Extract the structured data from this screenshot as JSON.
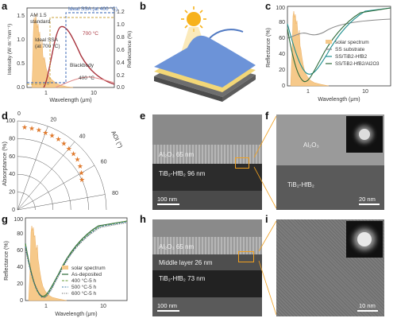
{
  "panel_labels": [
    "a",
    "b",
    "c",
    "d",
    "e",
    "f",
    "g",
    "h",
    "i"
  ],
  "panel_a": {
    "ylabel_left": "Intensity (W·m⁻²nm⁻¹)",
    "ylabel_right": "Reflectance (%)",
    "xlabel": "Wavelength (μm)",
    "annotations": {
      "am15": "AM 1.5",
      "standard": "standard",
      "ideal400": "Ideal SSA (at 400 °C)",
      "ideal700_1": "Ideal SSA",
      "ideal700_2": "(at 700 °C)",
      "t700": "700 °C",
      "blackbody": "Blackbody",
      "t400": "400 °C"
    },
    "left_ticks": [
      "0.0",
      "0.5",
      "1.0",
      "1.5"
    ],
    "right_ticks": [
      "0.0",
      "0.2",
      "0.4",
      "0.6",
      "0.8",
      "1.0",
      "1.2"
    ],
    "x_ticks": [
      "1",
      "10"
    ]
  },
  "panel_c": {
    "ylabel": "Reflectance (%)",
    "xlabel": "Wavelength (μm)",
    "y_ticks": [
      "0",
      "20",
      "40",
      "60",
      "80",
      "100"
    ],
    "x_ticks": [
      "1",
      "10"
    ],
    "legend": [
      "solar spectrum",
      "SS substrate",
      "SS/TiB2-HfB2",
      "SS/TiB2-HfB2/Al2O3"
    ],
    "colors": {
      "solar": "#f5c27a",
      "ss": "#8a8a8a",
      "tib2": "#1f8f8f",
      "al2o3": "#2e6b3a"
    }
  },
  "panel_d": {
    "ylabel": "Absorptance (%)",
    "angle_label": "AOI (°)",
    "r_ticks": [
      "0",
      "20",
      "40",
      "60",
      "80",
      "100"
    ],
    "angle_ticks": [
      "0",
      "20",
      "40",
      "60",
      "80"
    ],
    "points_color": "#e07a2e"
  },
  "chart_data": [
    {
      "type": "polar-scatter",
      "panel": "d",
      "ylabel": "Absorptance (%)",
      "angle_label": "AOI (°)",
      "x": [
        5,
        10,
        15,
        20,
        25,
        30,
        35,
        40,
        45,
        50,
        55,
        60,
        65
      ],
      "y": [
        93,
        93,
        93,
        92,
        92,
        92,
        91,
        90,
        89,
        88,
        86,
        83,
        80
      ]
    }
  ],
  "panel_e": {
    "layer1": "Al₂O₃ 65 nm",
    "layer2": "TiB₂-HfB₂ 96 nm",
    "scale": "100 nm"
  },
  "panel_f": {
    "layer1": "Al₂O₃",
    "layer2": "TiB₂-HfB₂",
    "scale": "20 nm"
  },
  "panel_g": {
    "ylabel": "Reflectance (%)",
    "xlabel": "Wavelength (μm)",
    "y_ticks": [
      "0",
      "20",
      "40",
      "60",
      "80",
      "100"
    ],
    "x_ticks": [
      "1",
      "10"
    ],
    "legend": [
      "solar spectrum",
      "As-deposited",
      "400 °C-5 h",
      "500 °C-5 h",
      "600 °C-5 h"
    ]
  },
  "panel_h": {
    "layer1": "Al₂O₃ 65 nm",
    "layer2": "Middle layer  26 nm",
    "layer3": "TiB₂-HfB₂ 73 nm",
    "scale": "100 nm"
  },
  "panel_i": {
    "scale": "10 nm"
  }
}
